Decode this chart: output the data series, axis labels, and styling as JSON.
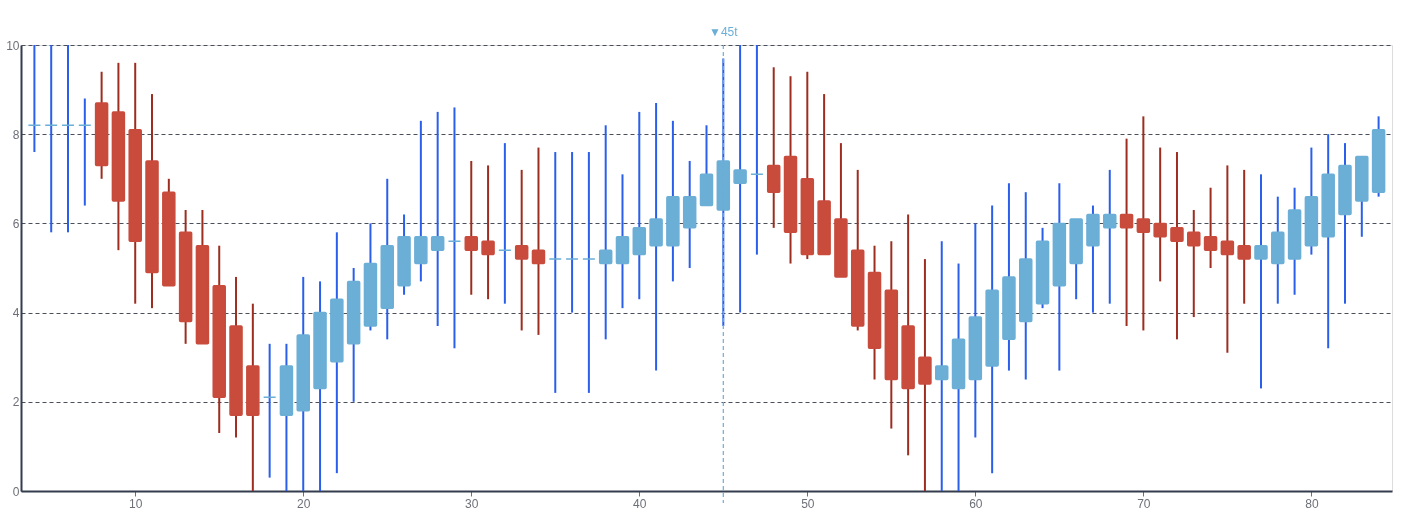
{
  "chart_data": {
    "type": "candlestick",
    "x": [
      4,
      5,
      6,
      7,
      8,
      9,
      10,
      11,
      12,
      13,
      14,
      15,
      16,
      17,
      18,
      19,
      20,
      21,
      22,
      23,
      24,
      25,
      26,
      27,
      28,
      29,
      30,
      31,
      32,
      33,
      34,
      35,
      36,
      37,
      38,
      39,
      40,
      41,
      42,
      43,
      44,
      45,
      46,
      47,
      48,
      49,
      50,
      51,
      52,
      53,
      54,
      55,
      56,
      57,
      58,
      59,
      60,
      61,
      62,
      63,
      64,
      65,
      66,
      67,
      68,
      69,
      70,
      71,
      72,
      73,
      74,
      75,
      76,
      77,
      78,
      79,
      80,
      81,
      82,
      83,
      84
    ],
    "ohlc": [
      [
        8.2,
        10,
        7.6,
        8.2
      ],
      [
        8.2,
        10,
        5.8,
        8.2
      ],
      [
        8.2,
        10,
        5.8,
        8.2
      ],
      [
        8.2,
        8.8,
        6.4,
        8.2
      ],
      [
        8.7,
        9.4,
        7.0,
        7.3
      ],
      [
        8.5,
        9.6,
        5.4,
        6.5
      ],
      [
        8.1,
        9.6,
        4.2,
        5.6
      ],
      [
        7.4,
        8.9,
        4.1,
        4.9
      ],
      [
        6.7,
        7.0,
        4.6,
        4.6
      ],
      [
        5.8,
        6.3,
        3.3,
        3.8
      ],
      [
        5.5,
        6.3,
        3.3,
        3.3
      ],
      [
        4.6,
        5.5,
        1.3,
        2.1
      ],
      [
        3.7,
        4.8,
        1.2,
        1.7
      ],
      [
        2.8,
        4.2,
        0,
        1.7
      ],
      [
        2.1,
        3.3,
        0.3,
        2.1
      ],
      [
        1.7,
        3.3,
        0,
        2.8
      ],
      [
        1.8,
        4.8,
        0,
        3.5
      ],
      [
        2.3,
        4.7,
        0,
        4.0
      ],
      [
        2.9,
        5.8,
        0.4,
        4.3
      ],
      [
        3.3,
        5.0,
        2.0,
        4.7
      ],
      [
        3.7,
        6.0,
        3.6,
        5.1
      ],
      [
        4.1,
        7.0,
        3.4,
        5.5
      ],
      [
        4.6,
        6.2,
        4.4,
        5.7
      ],
      [
        5.1,
        8.3,
        4.7,
        5.7
      ],
      [
        5.4,
        8.5,
        3.7,
        5.7
      ],
      [
        5.6,
        8.6,
        3.2,
        5.6
      ],
      [
        5.7,
        7.4,
        4.4,
        5.4
      ],
      [
        5.6,
        7.3,
        4.3,
        5.3
      ],
      [
        5.4,
        7.8,
        4.2,
        5.4
      ],
      [
        5.5,
        7.2,
        3.6,
        5.2
      ],
      [
        5.4,
        7.7,
        3.5,
        5.1
      ],
      [
        5.2,
        7.6,
        2.2,
        5.2
      ],
      [
        5.2,
        7.6,
        4.0,
        5.2
      ],
      [
        5.2,
        7.6,
        2.2,
        5.2
      ],
      [
        5.1,
        8.2,
        3.4,
        5.4
      ],
      [
        5.1,
        7.1,
        4.1,
        5.7
      ],
      [
        5.3,
        8.5,
        4.3,
        5.9
      ],
      [
        5.5,
        8.7,
        2.7,
        6.1
      ],
      [
        5.5,
        8.3,
        4.7,
        6.6
      ],
      [
        5.9,
        7.4,
        5.0,
        6.6
      ],
      [
        6.4,
        8.2,
        6.4,
        7.1
      ],
      [
        6.3,
        9.7,
        3.7,
        7.4
      ],
      [
        6.9,
        10,
        4.0,
        7.2
      ],
      [
        7.1,
        10,
        5.3,
        7.1
      ],
      [
        7.3,
        9.5,
        5.9,
        6.7
      ],
      [
        7.5,
        9.3,
        5.1,
        5.8
      ],
      [
        7.0,
        9.4,
        5.2,
        5.3
      ],
      [
        6.5,
        8.9,
        5.3,
        5.3
      ],
      [
        6.1,
        7.8,
        4.8,
        4.8
      ],
      [
        5.4,
        7.2,
        3.6,
        3.7
      ],
      [
        4.9,
        5.5,
        2.5,
        3.2
      ],
      [
        4.5,
        5.6,
        1.4,
        2.5
      ],
      [
        3.7,
        6.2,
        0.8,
        2.3
      ],
      [
        3.0,
        5.2,
        0,
        2.4
      ],
      [
        2.5,
        5.6,
        0,
        2.8
      ],
      [
        2.3,
        5.1,
        0,
        3.4
      ],
      [
        2.5,
        6.0,
        1.2,
        3.9
      ],
      [
        2.8,
        6.4,
        0.4,
        4.5
      ],
      [
        3.4,
        6.9,
        2.7,
        4.8
      ],
      [
        3.8,
        6.7,
        2.5,
        5.2
      ],
      [
        4.2,
        5.9,
        4.1,
        5.6
      ],
      [
        4.6,
        6.9,
        2.7,
        6.0
      ],
      [
        5.1,
        6.1,
        4.3,
        6.1
      ],
      [
        5.5,
        6.4,
        4.0,
        6.2
      ],
      [
        5.9,
        7.2,
        4.2,
        6.2
      ],
      [
        6.2,
        7.9,
        3.7,
        5.9
      ],
      [
        6.1,
        8.4,
        3.6,
        5.8
      ],
      [
        6.0,
        7.7,
        4.7,
        5.7
      ],
      [
        5.9,
        7.6,
        3.4,
        5.6
      ],
      [
        5.8,
        6.3,
        3.9,
        5.5
      ],
      [
        5.7,
        6.8,
        5.0,
        5.4
      ],
      [
        5.6,
        7.3,
        3.1,
        5.3
      ],
      [
        5.5,
        7.2,
        4.2,
        5.2
      ],
      [
        5.2,
        7.1,
        2.3,
        5.5
      ],
      [
        5.1,
        6.6,
        4.2,
        5.8
      ],
      [
        5.2,
        6.8,
        4.4,
        6.3
      ],
      [
        5.5,
        7.7,
        5.3,
        6.6
      ],
      [
        5.7,
        8.0,
        3.2,
        7.1
      ],
      [
        6.2,
        7.8,
        4.2,
        7.3
      ],
      [
        6.5,
        7.5,
        5.7,
        7.5
      ],
      [
        6.7,
        8.4,
        6.6,
        8.1
      ]
    ],
    "colors": [
      "#6baed6",
      "#6baed6",
      "#6baed6",
      "#6baed6",
      "#c84b3c",
      "#c84b3c",
      "#c84b3c",
      "#c84b3c",
      "#c84b3c",
      "#c84b3c",
      "#c84b3c",
      "#c84b3c",
      "#c84b3c",
      "#c84b3c",
      "#6baed6",
      "#6baed6",
      "#6baed6",
      "#6baed6",
      "#6baed6",
      "#6baed6",
      "#6baed6",
      "#6baed6",
      "#6baed6",
      "#6baed6",
      "#6baed6",
      "#6baed6",
      "#c84b3c",
      "#c84b3c",
      "#6baed6",
      "#c84b3c",
      "#c84b3c",
      "#6baed6",
      "#6baed6",
      "#6baed6",
      "#6baed6",
      "#6baed6",
      "#6baed6",
      "#6baed6",
      "#6baed6",
      "#6baed6",
      "#6baed6",
      "#6baed6",
      "#6baed6",
      "#6baed6",
      "#c84b3c",
      "#c84b3c",
      "#c84b3c",
      "#c84b3c",
      "#c84b3c",
      "#c84b3c",
      "#c84b3c",
      "#c84b3c",
      "#c84b3c",
      "#c84b3c",
      "#6baed6",
      "#6baed6",
      "#6baed6",
      "#6baed6",
      "#6baed6",
      "#6baed6",
      "#6baed6",
      "#6baed6",
      "#6baed6",
      "#6baed6",
      "#6baed6",
      "#c84b3c",
      "#c84b3c",
      "#c84b3c",
      "#c84b3c",
      "#c84b3c",
      "#c84b3c",
      "#c84b3c",
      "#c84b3c",
      "#6baed6",
      "#6baed6",
      "#6baed6",
      "#6baed6",
      "#6baed6",
      "#6baed6",
      "#6baed6",
      "#6baed6"
    ],
    "xlim": [
      3.5,
      84.5
    ],
    "ylim": [
      0,
      10
    ],
    "xticks": [
      10,
      20,
      30,
      40,
      50,
      60,
      70,
      80
    ],
    "yticks": [
      0,
      2,
      4,
      6,
      8,
      10
    ],
    "grid": "y",
    "ref_lines": [
      {
        "axis": "x",
        "value": 45,
        "label": "▼45t",
        "color": "#6baed6",
        "line_style": "dashed"
      }
    ]
  }
}
